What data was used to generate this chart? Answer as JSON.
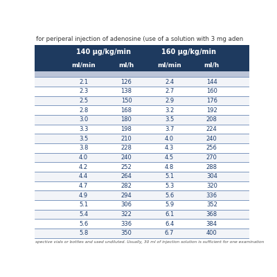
{
  "title": "for periperal injection of adenosine (use of a solution with 3 mg aden",
  "header1": "140 µg/kg/min",
  "header2": "160 µg/kg/min",
  "col_headers": [
    "ml/min",
    "ml/h",
    "ml/min",
    "ml/h"
  ],
  "rows": [
    [
      "2.1",
      "126",
      "2.4",
      "144"
    ],
    [
      "2.3",
      "138",
      "2.7",
      "160"
    ],
    [
      "2.5",
      "150",
      "2.9",
      "176"
    ],
    [
      "2.8",
      "168",
      "3.2",
      "192"
    ],
    [
      "3.0",
      "180",
      "3.5",
      "208"
    ],
    [
      "3.3",
      "198",
      "3.7",
      "224"
    ],
    [
      "3.5",
      "210",
      "4.0",
      "240"
    ],
    [
      "3.8",
      "228",
      "4.3",
      "256"
    ],
    [
      "4.0",
      "240",
      "4.5",
      "270"
    ],
    [
      "4.2",
      "252",
      "4.8",
      "288"
    ],
    [
      "4.4",
      "264",
      "5.1",
      "304"
    ],
    [
      "4.7",
      "282",
      "5.3",
      "320"
    ],
    [
      "4.9",
      "294",
      "5.6",
      "336"
    ],
    [
      "5.1",
      "306",
      "5.9",
      "352"
    ],
    [
      "5.4",
      "322",
      "6.1",
      "368"
    ],
    [
      "5.6",
      "336",
      "6.4",
      "384"
    ],
    [
      "5.8",
      "350",
      "6.7",
      "400"
    ]
  ],
  "footer": "spective vials or bottles and used undiluted. Usually, 30 ml of injection solution is sufficient for one examination",
  "header_bg": "#1e3a5f",
  "header_text": "#ffffff",
  "subheader_bg": "#bcc5d8",
  "row_bg_even": "#f2f4f8",
  "row_bg_odd": "#ffffff",
  "row_text": "#1a3a6b",
  "divider_color": "#4a6fa5",
  "title_color": "#333333",
  "footer_color": "#555555",
  "bg_color": "#ffffff"
}
